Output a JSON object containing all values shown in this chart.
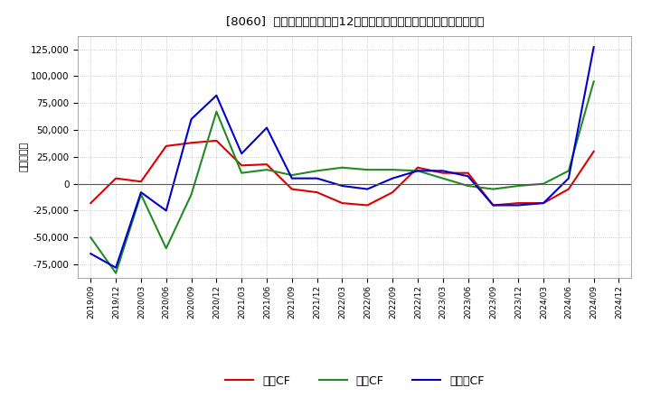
{
  "title": "[8060]  キャッシュフローの12か月移動合計の対前年同期増減額の推移",
  "ylabel": "（百万円）",
  "background_color": "#ffffff",
  "plot_bg_color": "#ffffff",
  "grid_color": "#bbbbbb",
  "ylim": [
    -87500,
    137500
  ],
  "yticks": [
    -75000,
    -50000,
    -25000,
    0,
    25000,
    50000,
    75000,
    100000,
    125000
  ],
  "x_labels": [
    "2019/09",
    "2019/12",
    "2020/03",
    "2020/06",
    "2020/09",
    "2020/12",
    "2021/03",
    "2021/06",
    "2021/09",
    "2021/12",
    "2022/03",
    "2022/06",
    "2022/09",
    "2022/12",
    "2023/03",
    "2023/06",
    "2023/09",
    "2023/12",
    "2024/03",
    "2024/06",
    "2024/09",
    "2024/12"
  ],
  "operating_cf": [
    -18000,
    5000,
    2000,
    35000,
    38000,
    40000,
    17000,
    18000,
    -5000,
    -8000,
    -18000,
    -20000,
    -8000,
    15000,
    10000,
    10000,
    -20000,
    -18000,
    -18000,
    -5000,
    30000,
    null
  ],
  "investing_cf": [
    -50000,
    -83000,
    -10000,
    -60000,
    -10000,
    67000,
    10000,
    13000,
    8000,
    12000,
    15000,
    13000,
    13000,
    12000,
    5000,
    -2000,
    -5000,
    -2000,
    0,
    12000,
    95000,
    null
  ],
  "free_cf": [
    -65000,
    -78000,
    -8000,
    -25000,
    60000,
    82000,
    28000,
    52000,
    5000,
    5000,
    -2000,
    -5000,
    5000,
    12000,
    12000,
    7000,
    -20000,
    -20000,
    -18000,
    5000,
    127000,
    null
  ],
  "operating_color": "#dd0000",
  "investing_color": "#228B22",
  "free_color": "#0000cc",
  "line_width": 1.5,
  "legend_labels": [
    "営業CF",
    "投資CF",
    "フリーCF"
  ]
}
